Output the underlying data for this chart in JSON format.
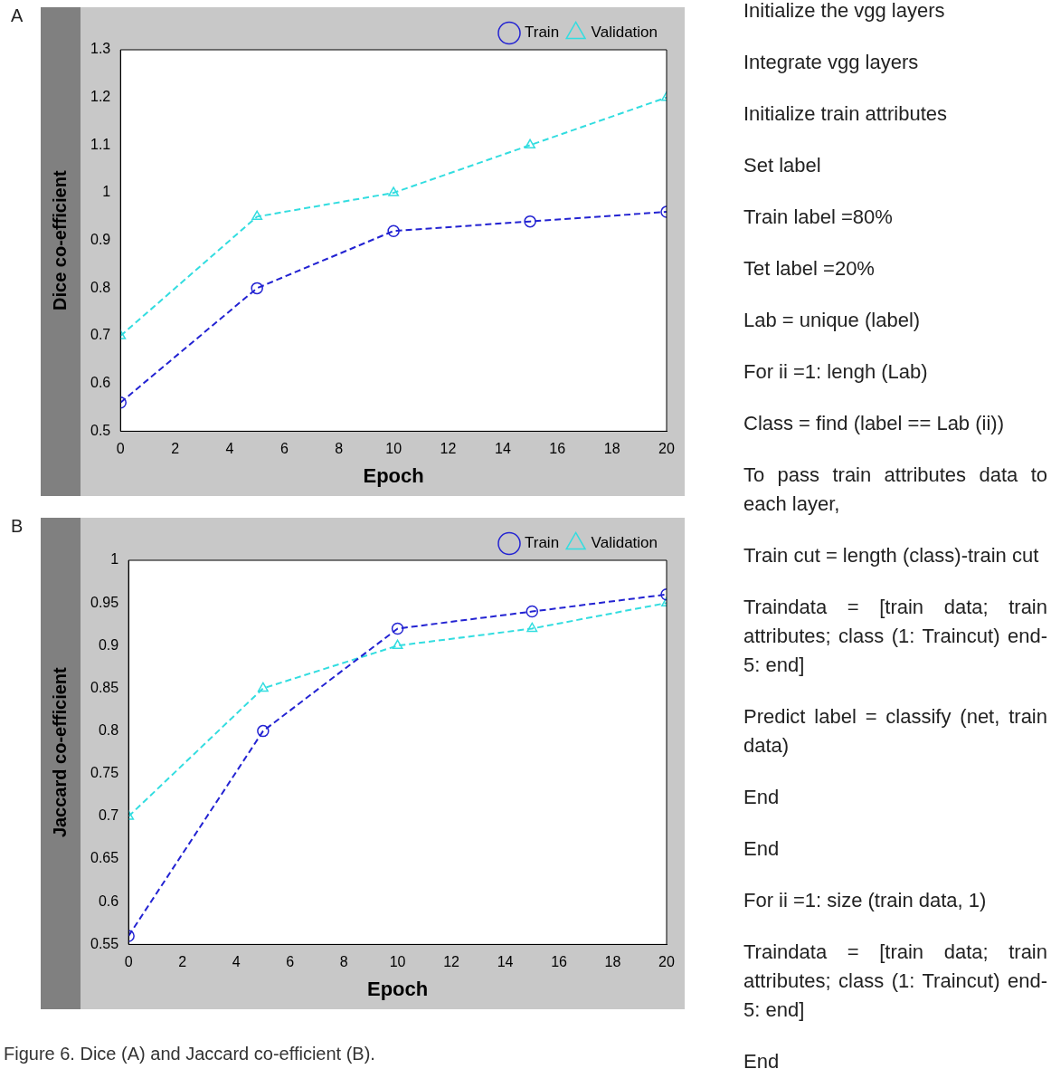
{
  "chart_data": [
    {
      "type": "line",
      "xlabel": "Epoch",
      "ylabel": "Dice co-efficient",
      "x": [
        0,
        5,
        10,
        15,
        20
      ],
      "series": [
        {
          "name": "Train",
          "color": "#2323d2",
          "marker": "circle",
          "values": [
            0.56,
            0.8,
            0.92,
            0.94,
            0.96
          ]
        },
        {
          "name": "Validation",
          "color": "#33dde0",
          "marker": "triangle",
          "values": [
            0.7,
            0.95,
            1.0,
            1.1,
            1.2
          ]
        }
      ],
      "line_style": "dashed",
      "legend": "top right",
      "grid": false,
      "xlim": [
        0,
        20
      ],
      "xticks": [
        0,
        2,
        4,
        6,
        8,
        10,
        12,
        14,
        16,
        18,
        20
      ],
      "ylim": [
        0.5,
        1.3
      ],
      "yticks": [
        0.5,
        0.6,
        0.7,
        0.8,
        0.9,
        1,
        1.1,
        1.2,
        1.3
      ],
      "annotations": [
        "A"
      ]
    },
    {
      "type": "line",
      "xlabel": "Epoch",
      "ylabel": "Jaccard co-efficient",
      "x": [
        0,
        5,
        10,
        15,
        20
      ],
      "series": [
        {
          "name": "Train",
          "color": "#2323d2",
          "marker": "circle",
          "values": [
            0.56,
            0.8,
            0.92,
            0.94,
            0.96
          ]
        },
        {
          "name": "Validation",
          "color": "#33dde0",
          "marker": "triangle",
          "values": [
            0.7,
            0.85,
            0.9,
            0.92,
            0.95
          ]
        }
      ],
      "line_style": "dashed",
      "legend": "top right",
      "grid": false,
      "xlim": [
        0,
        20
      ],
      "xticks": [
        0,
        2,
        4,
        6,
        8,
        10,
        12,
        14,
        16,
        18,
        20
      ],
      "ylim": [
        0.55,
        1
      ],
      "yticks": [
        0.55,
        0.6,
        0.65,
        0.7,
        0.75,
        0.8,
        0.85,
        0.9,
        0.95,
        1
      ],
      "annotations": [
        "B",
        "Figure 6. Dice (A) and Jaccard co-efficient (B)."
      ]
    },
    {
      "type": "other",
      "annotations": [
        "Initialize the vgg layers",
        "Integrate vgg layers",
        "Initialize train attributes",
        "Set label",
        "Train label =80%",
        "Tet label =20%",
        "Lab = unique (label)",
        "For ii =1: lengh (Lab)",
        "Class = find (label == Lab (ii))",
        "To pass train attributes data to each layer,",
        "Train cut = length (class)-train cut",
        "Traindata = [train data; train attributes; class (1: Traincut) end-5: end]",
        "Predict label = classify (net, train data)",
        "End",
        "End",
        "For ii =1: size (train data, 1)",
        "Traindata = [train data; train attributes; class (1: Traincut) end-5: end]",
        "End"
      ]
    }
  ]
}
